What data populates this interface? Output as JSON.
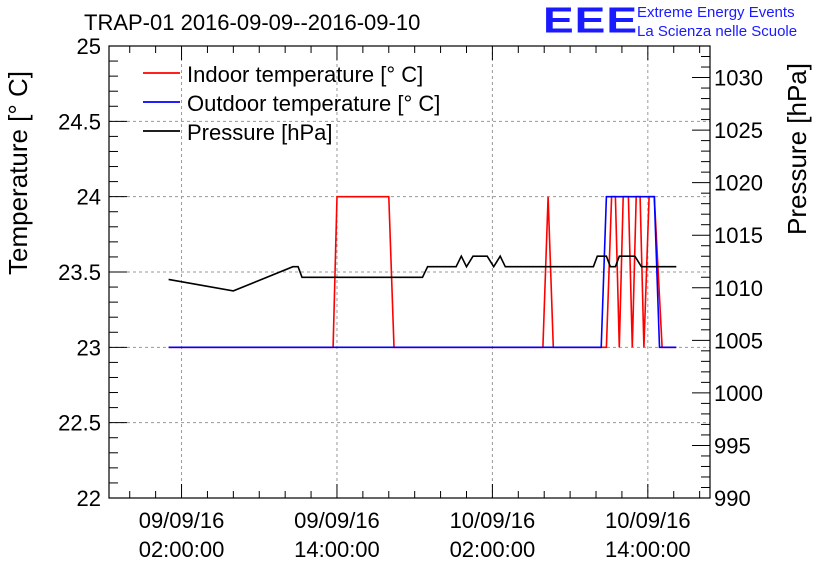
{
  "chart_data": {
    "type": "line",
    "title": "TRAP-01 2016-09-09--2016-09-10",
    "ylabel_left": "Temperature [° C]",
    "ylabel_right": "Pressure [hPa]",
    "ylim_left": [
      22,
      25
    ],
    "ylim_right": [
      990,
      1033
    ],
    "left_ticks": [
      "22",
      "22.5",
      "23",
      "23.5",
      "24",
      "24.5",
      "25"
    ],
    "right_ticks": [
      "990",
      "995",
      "1000",
      "1005",
      "1010",
      "1015",
      "1020",
      "1025",
      "1030"
    ],
    "x_unit": "hours since 09/09/16 00:00",
    "xlim": [
      -3.6,
      42.8
    ],
    "x_ticks": [
      {
        "date": "09/09/16",
        "time": "02:00:00"
      },
      {
        "date": "09/09/16",
        "time": "14:00:00"
      },
      {
        "date": "10/09/16",
        "time": "02:00:00"
      },
      {
        "date": "10/09/16",
        "time": "14:00:00"
      }
    ],
    "grid": true,
    "legend_position": "top-left",
    "series": [
      {
        "name": "Indoor temperature [° C]",
        "color": "#ff0000",
        "axis": "left",
        "points": [
          [
            1.0,
            23
          ],
          [
            13.7,
            23
          ],
          [
            14.0,
            24
          ],
          [
            18.0,
            24
          ],
          [
            18.4,
            23
          ],
          [
            29.9,
            23
          ],
          [
            30.3,
            24
          ],
          [
            30.7,
            23
          ],
          [
            34.8,
            23
          ],
          [
            35.2,
            24
          ],
          [
            35.5,
            24
          ],
          [
            35.8,
            23
          ],
          [
            36.1,
            24
          ],
          [
            36.5,
            24
          ],
          [
            36.8,
            23
          ],
          [
            37.1,
            24
          ],
          [
            37.4,
            24
          ],
          [
            37.7,
            23
          ],
          [
            38.1,
            24
          ],
          [
            38.5,
            24
          ],
          [
            39.1,
            23
          ],
          [
            40.2,
            23
          ]
        ]
      },
      {
        "name": "Outdoor temperature [° C]",
        "color": "#0000ff",
        "axis": "left",
        "points": [
          [
            1.0,
            23
          ],
          [
            34.4,
            23
          ],
          [
            34.8,
            24
          ],
          [
            37.3,
            24
          ],
          [
            37.7,
            24
          ],
          [
            38.5,
            24
          ],
          [
            38.9,
            23
          ],
          [
            40.2,
            23
          ]
        ]
      },
      {
        "name": "Pressure [hPa]",
        "color": "#000000",
        "axis": "right",
        "points": [
          [
            1.0,
            1010.8
          ],
          [
            6.0,
            1009.7
          ],
          [
            10.6,
            1012.0
          ],
          [
            11.0,
            1012.0
          ],
          [
            11.3,
            1011.0
          ],
          [
            17.5,
            1011.0
          ],
          [
            18.1,
            1011.0
          ],
          [
            20.6,
            1011.0
          ],
          [
            21.0,
            1012.0
          ],
          [
            23.2,
            1012.0
          ],
          [
            23.6,
            1013.0
          ],
          [
            24.0,
            1012.0
          ],
          [
            24.5,
            1013.0
          ],
          [
            25.6,
            1013.0
          ],
          [
            26.1,
            1012.0
          ],
          [
            26.6,
            1013.0
          ],
          [
            27.0,
            1012.0
          ],
          [
            27.5,
            1012.0
          ],
          [
            27.8,
            1012.0
          ],
          [
            33.8,
            1012.0
          ],
          [
            34.1,
            1013.0
          ],
          [
            34.8,
            1013.0
          ],
          [
            35.1,
            1012.0
          ],
          [
            35.5,
            1012.0
          ],
          [
            35.8,
            1013.0
          ],
          [
            37.0,
            1013.0
          ],
          [
            37.5,
            1012.0
          ],
          [
            40.2,
            1012.0
          ]
        ]
      }
    ]
  },
  "header": {
    "title": "TRAP-01 2016-09-09--2016-09-10",
    "logo_text": "EEE",
    "logo_line1": "Extreme Energy Events",
    "logo_line2": "La Scienza nelle Scuole"
  }
}
